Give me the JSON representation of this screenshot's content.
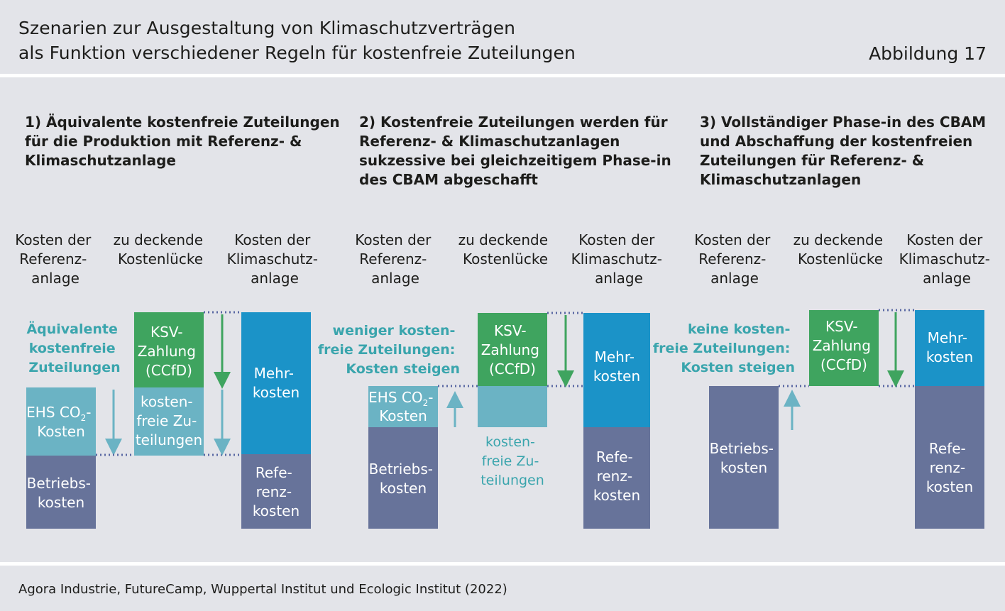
{
  "header": {
    "title_line1": "Szenarien zur Ausgestaltung von Klimaschutzverträgen",
    "title_line2": "als Funktion verschiedener Regeln für kostenfreie Zuteilungen",
    "figure_number": "Abbildung 17"
  },
  "footer": {
    "source": "Agora Industrie, FutureCamp, Wuppertal Institut und Ecologic Institut (2022)"
  },
  "colors": {
    "betrieb": "#67739a",
    "ehs": "#6bb3c4",
    "ksv": "#3fa45f",
    "mehr": "#1b93c8",
    "teal_text": "#3aa5ad",
    "dotted": "#5a68a3"
  },
  "columns": {
    "ref": [
      "Kosten der",
      "Referenz-",
      "anlage"
    ],
    "gap": [
      "zu deckende",
      "Kostenlücke"
    ],
    "klima": [
      "Kosten der",
      "Klimaschutz-",
      "anlage"
    ]
  },
  "boxes": {
    "betrieb": [
      "Betriebs-",
      "kosten"
    ],
    "ehs_line1": "EHS CO",
    "ehs_sub": "2",
    "ehs_dash": "-",
    "ehs_line2": "Kosten",
    "ksv": [
      "KSV-",
      "Zahlung",
      "(CCfD)"
    ],
    "free": [
      "kosten-",
      "freie Zu-",
      "teilungen"
    ],
    "mehr": [
      "Mehr-",
      "kosten"
    ],
    "referenz": [
      "Refe-",
      "renz-",
      "kosten"
    ]
  },
  "panels": [
    {
      "title": [
        "1) Äquivalente kostenfreie Zuteilungen",
        "für die Produktion mit Referenz- &",
        "Klimaschutzanlage"
      ],
      "annotation": [
        "Äquivalente",
        "kostenfreie",
        "Zuteilungen"
      ]
    },
    {
      "title": [
        "2) Kostenfreie Zuteilungen werden für",
        "Referenz- & Klimaschutzanlagen",
        "sukzessive bei gleichzeitigem Phase-in",
        "des CBAM abgeschafft"
      ],
      "annotation": [
        "weniger kosten-",
        "freie Zuteilungen:",
        "Kosten steigen"
      ]
    },
    {
      "title": [
        "3) Vollständiger Phase-in des CBAM",
        "und Abschaffung der kostenfreien",
        "Zuteilungen für Referenz- &",
        "Klimaschutzanlagen"
      ],
      "annotation": [
        "keine kosten-",
        "freie Zuteilungen:",
        "Kosten steigen"
      ]
    }
  ]
}
